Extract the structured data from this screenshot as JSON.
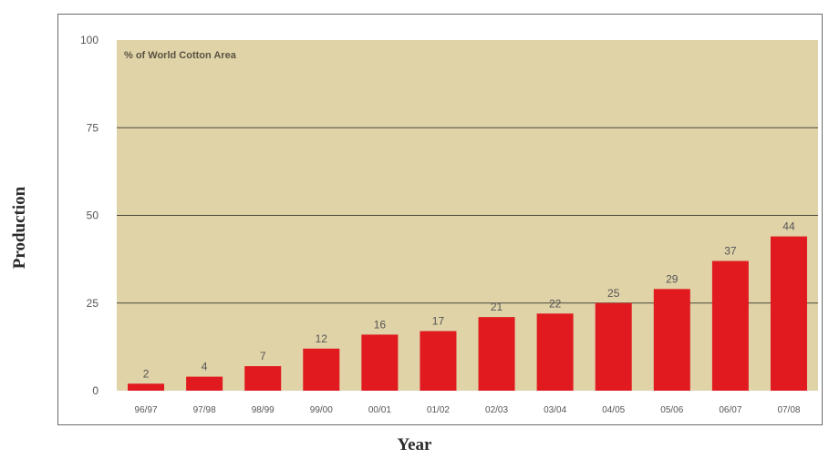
{
  "chart_data": {
    "type": "bar",
    "title": "% of World Cotton Area",
    "xlabel": "Year",
    "ylabel": "Production",
    "categories": [
      "96/97",
      "97/98",
      "98/99",
      "99/00",
      "00/01",
      "01/02",
      "02/03",
      "03/04",
      "04/05",
      "05/06",
      "06/07",
      "07/08"
    ],
    "values": [
      2,
      4,
      7,
      12,
      16,
      17,
      21,
      22,
      25,
      29,
      37,
      44
    ],
    "yticks": [
      0,
      25,
      50,
      75,
      100
    ],
    "ylim": [
      0,
      100
    ],
    "grid": true,
    "colors": {
      "bar": "#e01a1f",
      "plot_bg": "#e0d3a8",
      "gridline": "#4a4a3a"
    }
  }
}
